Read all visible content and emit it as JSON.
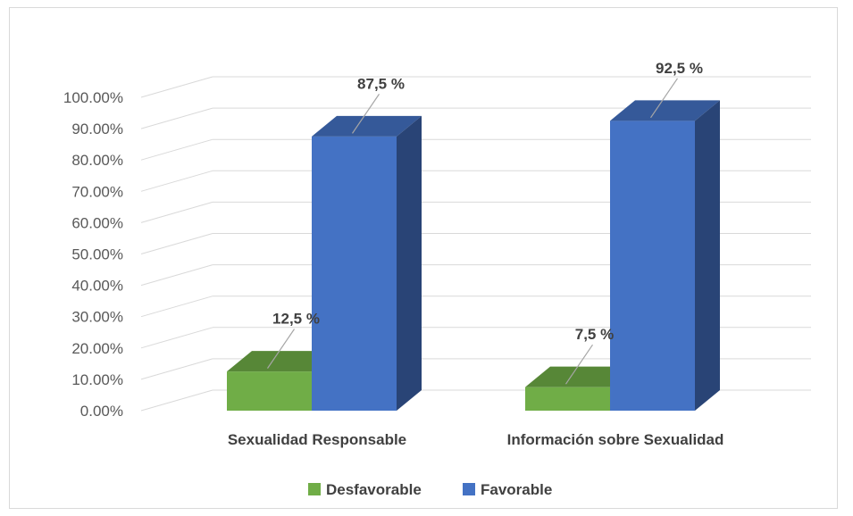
{
  "chart_data": {
    "type": "bar",
    "style": "3d-clustered-column",
    "categories": [
      "Sexualidad Responsable",
      "Información sobre Sexualidad"
    ],
    "series": [
      {
        "name": "Desfavorable",
        "values": [
          12.5,
          7.5
        ],
        "labels": [
          "12,5 %",
          "7,5 %"
        ],
        "color": "#70ad47"
      },
      {
        "name": "Favorable",
        "values": [
          87.5,
          92.5
        ],
        "labels": [
          "87,5 %",
          "92,5 %"
        ],
        "color": "#4472c4"
      }
    ],
    "y_ticks": [
      "0.00%",
      "10.00%",
      "20.00%",
      "30.00%",
      "40.00%",
      "50.00%",
      "60.00%",
      "70.00%",
      "80.00%",
      "90.00%",
      "100.00%"
    ],
    "ylim": [
      0,
      100
    ],
    "grid": true,
    "legend_position": "bottom"
  }
}
